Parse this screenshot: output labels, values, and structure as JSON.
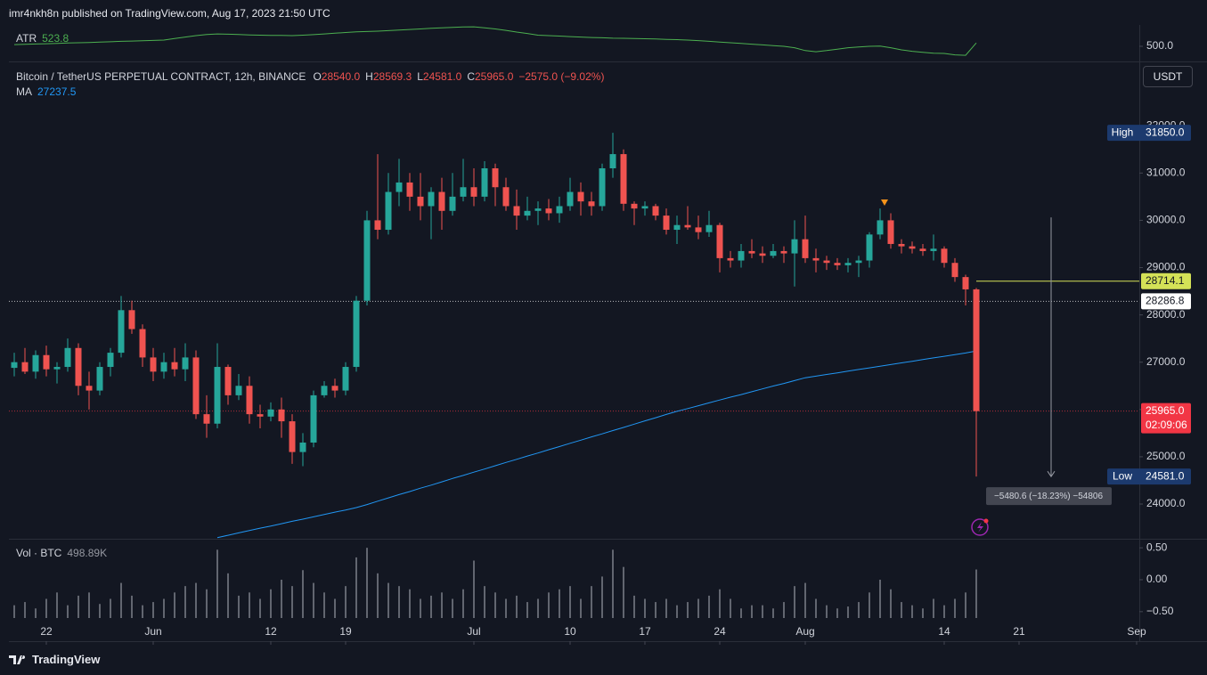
{
  "header": "imr4nkh8n published on TradingView.com, Aug 17, 2023 21:50 UTC",
  "footer": "TradingView",
  "chart_data": {
    "type": "candlestick",
    "symbol": "Bitcoin / TetherUS PERPETUAL CONTRACT, 12h, BINANCE",
    "ohlc": [
      {
        "key": "O",
        "value": "28540.0"
      },
      {
        "key": "H",
        "value": "28569.3"
      },
      {
        "key": "L",
        "value": "24581.0"
      },
      {
        "key": "C",
        "value": "25965.0"
      }
    ],
    "change": "−2575.0 (−9.02%)",
    "currency": "USDT",
    "up_color": "#26a69a",
    "down_color": "#ef5350",
    "x": [
      "2023-05-19",
      "2023-05-20",
      "2023-05-21",
      "2023-05-22",
      "2023-05-23",
      "2023-05-24",
      "2023-05-25",
      "2023-05-26",
      "2023-05-27",
      "2023-05-28",
      "2023-05-29",
      "2023-05-30",
      "2023-05-31",
      "2023-06-01",
      "2023-06-02",
      "2023-06-03",
      "2023-06-04",
      "2023-06-05",
      "2023-06-06",
      "2023-06-07",
      "2023-06-08",
      "2023-06-09",
      "2023-06-10",
      "2023-06-11",
      "2023-06-12",
      "2023-06-13",
      "2023-06-14",
      "2023-06-15",
      "2023-06-16",
      "2023-06-17",
      "2023-06-18",
      "2023-06-19",
      "2023-06-20",
      "2023-06-21",
      "2023-06-22",
      "2023-06-23",
      "2023-06-24",
      "2023-06-25",
      "2023-06-26",
      "2023-06-27",
      "2023-06-28",
      "2023-06-29",
      "2023-06-30",
      "2023-07-01",
      "2023-07-02",
      "2023-07-03",
      "2023-07-04",
      "2023-07-05",
      "2023-07-06",
      "2023-07-07",
      "2023-07-08",
      "2023-07-09",
      "2023-07-10",
      "2023-07-11",
      "2023-07-12",
      "2023-07-13",
      "2023-07-14",
      "2023-07-15",
      "2023-07-16",
      "2023-07-17",
      "2023-07-18",
      "2023-07-19",
      "2023-07-20",
      "2023-07-21",
      "2023-07-22",
      "2023-07-23",
      "2023-07-24",
      "2023-07-25",
      "2023-07-26",
      "2023-07-27",
      "2023-07-28",
      "2023-07-29",
      "2023-07-30",
      "2023-07-31",
      "2023-08-01",
      "2023-08-02",
      "2023-08-03",
      "2023-08-04",
      "2023-08-05",
      "2023-08-06",
      "2023-08-07",
      "2023-08-08",
      "2023-08-09",
      "2023-08-10",
      "2023-08-11",
      "2023-08-12",
      "2023-08-13",
      "2023-08-14",
      "2023-08-15",
      "2023-08-16",
      "2023-08-17"
    ],
    "candles": [
      [
        26880,
        27200,
        26700,
        27000
      ],
      [
        27000,
        27300,
        26750,
        26800
      ],
      [
        26800,
        27250,
        26650,
        27150
      ],
      [
        27150,
        27350,
        26700,
        26850
      ],
      [
        26850,
        27000,
        26550,
        26900
      ],
      [
        26900,
        27500,
        26800,
        27300
      ],
      [
        27300,
        27400,
        26300,
        26500
      ],
      [
        26500,
        26800,
        26000,
        26400
      ],
      [
        26400,
        27000,
        26300,
        26900
      ],
      [
        26900,
        27300,
        26700,
        27200
      ],
      [
        27200,
        28400,
        27100,
        28100
      ],
      [
        28100,
        28300,
        27600,
        27700
      ],
      [
        27700,
        27800,
        26900,
        27100
      ],
      [
        27100,
        27300,
        26600,
        26800
      ],
      [
        26800,
        27200,
        26650,
        27000
      ],
      [
        27000,
        27300,
        26700,
        26850
      ],
      [
        26850,
        27400,
        26600,
        27100
      ],
      [
        27100,
        27250,
        25800,
        25900
      ],
      [
        25900,
        26300,
        25400,
        25700
      ],
      [
        25700,
        27400,
        25600,
        26900
      ],
      [
        26900,
        26950,
        26100,
        26300
      ],
      [
        26300,
        26750,
        26200,
        26500
      ],
      [
        26500,
        26700,
        25700,
        25900
      ],
      [
        25900,
        26100,
        25600,
        25850
      ],
      [
        25850,
        26150,
        25750,
        26000
      ],
      [
        26000,
        26250,
        25400,
        25750
      ],
      [
        25750,
        25900,
        24850,
        25100
      ],
      [
        25100,
        25500,
        24800,
        25300
      ],
      [
        25300,
        26400,
        25200,
        26300
      ],
      [
        26300,
        26600,
        26250,
        26500
      ],
      [
        26500,
        26650,
        26250,
        26400
      ],
      [
        26400,
        27000,
        26300,
        26900
      ],
      [
        26900,
        28400,
        26800,
        28300
      ],
      [
        28300,
        30200,
        28200,
        30000
      ],
      [
        30000,
        31400,
        29600,
        29800
      ],
      [
        29800,
        31000,
        29700,
        30600
      ],
      [
        30600,
        31300,
        30300,
        30800
      ],
      [
        30800,
        31000,
        30200,
        30500
      ],
      [
        30500,
        31000,
        30000,
        30300
      ],
      [
        30300,
        30700,
        29600,
        30600
      ],
      [
        30600,
        30900,
        29800,
        30200
      ],
      [
        30200,
        31000,
        30100,
        30500
      ],
      [
        30500,
        31300,
        30400,
        30700
      ],
      [
        30700,
        31100,
        30300,
        30500
      ],
      [
        30500,
        31250,
        30400,
        31100
      ],
      [
        31100,
        31200,
        30300,
        30700
      ],
      [
        30700,
        30900,
        30200,
        30300
      ],
      [
        30300,
        30650,
        29800,
        30100
      ],
      [
        30100,
        30500,
        30000,
        30200
      ],
      [
        30200,
        30400,
        29900,
        30250
      ],
      [
        30250,
        30450,
        30000,
        30150
      ],
      [
        30150,
        30500,
        29950,
        30300
      ],
      [
        30300,
        30900,
        30200,
        30600
      ],
      [
        30600,
        30800,
        30100,
        30400
      ],
      [
        30400,
        30600,
        30100,
        30300
      ],
      [
        30300,
        31200,
        30200,
        31100
      ],
      [
        31100,
        31850,
        30900,
        31400
      ],
      [
        31400,
        31500,
        30200,
        30350
      ],
      [
        30350,
        30400,
        29900,
        30250
      ],
      [
        30250,
        30400,
        30100,
        30300
      ],
      [
        30300,
        30350,
        30000,
        30100
      ],
      [
        30100,
        30250,
        29700,
        29800
      ],
      [
        29800,
        30100,
        29500,
        29900
      ],
      [
        29900,
        30300,
        29800,
        29850
      ],
      [
        29850,
        30100,
        29600,
        29750
      ],
      [
        29750,
        30200,
        29650,
        29900
      ],
      [
        29900,
        29950,
        28900,
        29200
      ],
      [
        29200,
        29350,
        29000,
        29150
      ],
      [
        29150,
        29500,
        29000,
        29350
      ],
      [
        29350,
        29600,
        29200,
        29300
      ],
      [
        29300,
        29450,
        29100,
        29250
      ],
      [
        29250,
        29500,
        29200,
        29350
      ],
      [
        29350,
        29450,
        29100,
        29300
      ],
      [
        29300,
        30000,
        28600,
        29600
      ],
      [
        29600,
        30100,
        29100,
        29200
      ],
      [
        29200,
        29400,
        28900,
        29150
      ],
      [
        29150,
        29250,
        28950,
        29100
      ],
      [
        29100,
        29200,
        28950,
        29050
      ],
      [
        29050,
        29200,
        28900,
        29100
      ],
      [
        29100,
        29250,
        28800,
        29150
      ],
      [
        29150,
        29750,
        29000,
        29700
      ],
      [
        29700,
        30250,
        29600,
        30000
      ],
      [
        30000,
        30150,
        29400,
        29500
      ],
      [
        29500,
        29600,
        29300,
        29450
      ],
      [
        29450,
        29550,
        29300,
        29400
      ],
      [
        29400,
        29500,
        29250,
        29350
      ],
      [
        29350,
        29700,
        29150,
        29400
      ],
      [
        29400,
        29450,
        29000,
        29100
      ],
      [
        29100,
        29200,
        28700,
        28800
      ],
      [
        28800,
        28850,
        28200,
        28540
      ],
      [
        28540,
        28569.3,
        24581,
        25965
      ]
    ],
    "xlim": [
      "2023-05-18",
      "2023-09-02"
    ],
    "xticks": [
      {
        "value": "2023-05-22",
        "label": "22"
      },
      {
        "value": "2023-06-01",
        "label": "Jun"
      },
      {
        "value": "2023-06-12",
        "label": "12"
      },
      {
        "value": "2023-06-19",
        "label": "19"
      },
      {
        "value": "2023-07-01",
        "label": "Jul"
      },
      {
        "value": "2023-07-10",
        "label": "10"
      },
      {
        "value": "2023-07-17",
        "label": "17"
      },
      {
        "value": "2023-07-24",
        "label": "24"
      },
      {
        "value": "2023-08-01",
        "label": "Aug"
      },
      {
        "value": "2023-08-14",
        "label": "14"
      },
      {
        "value": "2023-08-21",
        "label": "21"
      },
      {
        "value": "2023-09-01",
        "label": "Sep"
      }
    ],
    "ylim": [
      23266,
      33341
    ],
    "yticks": [
      {
        "value": 24000,
        "label": "24000.0"
      },
      {
        "value": 25000,
        "label": "25000.0"
      },
      {
        "value": 26000,
        "label": "26000.0"
      },
      {
        "value": 27000,
        "label": "27000.0"
      },
      {
        "value": 28000,
        "label": "28000.0"
      },
      {
        "value": 29000,
        "label": "29000.0"
      },
      {
        "value": 30000,
        "label": "30000.0"
      },
      {
        "value": 31000,
        "label": "31000.0"
      },
      {
        "value": 32000,
        "label": "32000.0"
      }
    ],
    "price_lines": [
      {
        "name": "High",
        "value": 31850,
        "label": "31850.0",
        "color": "#1c3a6e",
        "text_color": "#ffffff",
        "line": "none"
      },
      {
        "value": 28714.1,
        "label": "28714.1",
        "color": "#d4e157",
        "text_color": "#131722",
        "line": "solid"
      },
      {
        "value": 28286.8,
        "label": "28286.8",
        "color": "#ffffff",
        "text_color": "#131722",
        "line": "dotted"
      },
      {
        "value": 25965,
        "label": "25965.0",
        "sublabel": "02:09:06",
        "color": "#f23645",
        "text_color": "#ffffff",
        "line": "dotted"
      },
      {
        "name": "Low",
        "value": 24581,
        "label": "24581.0",
        "color": "#1c3a6e",
        "text_color": "#ffffff",
        "line": "none"
      }
    ],
    "measure": {
      "from": 30061.6,
      "to": 24581,
      "label": "−5480.6 (−18.23%) −54806"
    },
    "ma": {
      "name": "MA",
      "value_label": "27237.5",
      "color": "#2196f3",
      "values": [
        null,
        null,
        null,
        null,
        null,
        null,
        null,
        null,
        null,
        null,
        null,
        null,
        null,
        null,
        null,
        null,
        null,
        null,
        null,
        23290,
        23340,
        23390,
        23440,
        23490,
        23535,
        23585,
        23635,
        23680,
        23730,
        23780,
        23830,
        23875,
        23925,
        23990,
        24060,
        24130,
        24200,
        24265,
        24335,
        24400,
        24470,
        24540,
        24605,
        24675,
        24740,
        24810,
        24880,
        24945,
        25015,
        25080,
        25150,
        25215,
        25285,
        25350,
        25420,
        25485,
        25555,
        25620,
        25690,
        25760,
        25825,
        25895,
        25960,
        26020,
        26080,
        26140,
        26200,
        26260,
        26315,
        26375,
        26435,
        26495,
        26550,
        26610,
        26670,
        26705,
        26740,
        26775,
        26810,
        26845,
        26880,
        26915,
        26950,
        26985,
        27020,
        27055,
        27090,
        27125,
        27160,
        27195,
        27237.5
      ]
    },
    "atr": {
      "name": "ATR",
      "value_label": "523.8",
      "color": "#4caf50",
      "ylim": [
        400,
        650
      ],
      "yticks": [
        {
          "value": 500,
          "label": "500.0"
        }
      ],
      "values": [
        512,
        514,
        516,
        518,
        520,
        523,
        525,
        527,
        530,
        532,
        535,
        537,
        539,
        541,
        544,
        555,
        565,
        575,
        583,
        587,
        585,
        583,
        580,
        578,
        577,
        576,
        575,
        578,
        582,
        587,
        592,
        597,
        601,
        604,
        606,
        610,
        614,
        618,
        622,
        626,
        630,
        633,
        636,
        637,
        630,
        622,
        612,
        600,
        590,
        578,
        575,
        572,
        568,
        565,
        562,
        560,
        557,
        556,
        555,
        553,
        551,
        549,
        547,
        544,
        540,
        535,
        530,
        525,
        520,
        515,
        510,
        505,
        500,
        490,
        470,
        462,
        470,
        480,
        490,
        495,
        500,
        502,
        490,
        475,
        465,
        458,
        452,
        450,
        440,
        437,
        523.8
      ]
    },
    "volume": {
      "name": "Vol · BTC",
      "legend_value": "498.89K",
      "color": "#b2b5be",
      "ylim": [
        -0.6,
        0.6
      ],
      "yticks": [
        {
          "value": 0.5,
          "label": "0.50"
        },
        {
          "value": 0,
          "label": "0.00"
        },
        {
          "value": -0.5,
          "label": "−0.50"
        }
      ],
      "values": [
        -0.4,
        -0.35,
        -0.45,
        -0.3,
        -0.2,
        -0.4,
        -0.25,
        -0.2,
        -0.38,
        -0.3,
        -0.05,
        -0.25,
        -0.4,
        -0.35,
        -0.3,
        -0.2,
        -0.1,
        -0.05,
        -0.15,
        0.47,
        0.1,
        -0.25,
        -0.2,
        -0.3,
        -0.15,
        0.0,
        -0.1,
        0.15,
        -0.05,
        -0.2,
        -0.3,
        -0.1,
        0.35,
        0.5,
        0.1,
        -0.05,
        -0.1,
        -0.15,
        -0.3,
        -0.25,
        -0.2,
        -0.3,
        -0.15,
        0.3,
        -0.1,
        -0.2,
        -0.3,
        -0.25,
        -0.35,
        -0.3,
        -0.2,
        -0.15,
        -0.1,
        -0.3,
        -0.1,
        0.05,
        0.47,
        0.2,
        -0.25,
        -0.3,
        -0.35,
        -0.3,
        -0.4,
        -0.35,
        -0.3,
        -0.25,
        -0.15,
        -0.3,
        -0.45,
        -0.4,
        -0.4,
        -0.45,
        -0.35,
        -0.1,
        -0.05,
        -0.3,
        -0.4,
        -0.45,
        -0.42,
        -0.35,
        -0.2,
        0.0,
        -0.15,
        -0.35,
        -0.4,
        -0.45,
        -0.3,
        -0.4,
        -0.3,
        -0.2,
        0.16
      ]
    }
  }
}
